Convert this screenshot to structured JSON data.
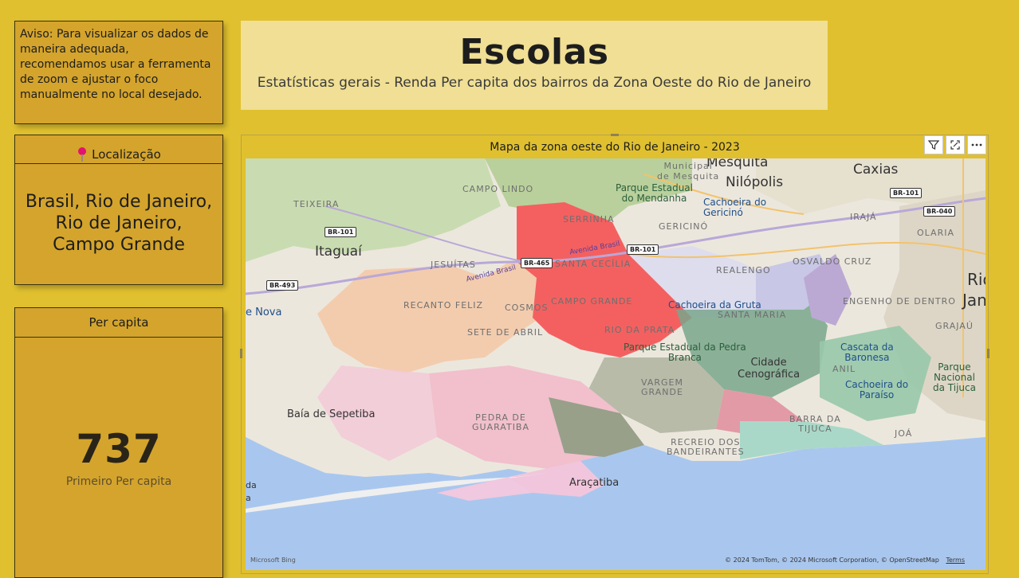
{
  "warning": {
    "text": "Aviso: Para visualizar os dados de maneira adequada, recomendamos usar a ferramenta de zoom e ajustar o foco manualmente no local desejado."
  },
  "location": {
    "header": "Localização",
    "value_lines": [
      "Brasil, Rio de Janeiro,",
      "Rio de Janeiro,",
      "Campo Grande"
    ]
  },
  "per_capita": {
    "header": "Per capita",
    "value": "737",
    "label": "Primeiro Per capita"
  },
  "title": {
    "main": "Escolas",
    "subtitle": "Estatísticas gerais - Renda Per capita dos bairros da Zona Oeste do Rio de Janeiro"
  },
  "map": {
    "title": "Mapa da zona oeste do Rio de Janeiro - 2023",
    "bing_logo": "Microsoft Bing",
    "attribution": "© 2024 TomTom, © 2024 Microsoft Corporation, © OpenStreetMap",
    "terms": "Terms",
    "labels": {
      "caxias": "Caxias",
      "mesquita": "Mesquita",
      "nilopolis": "Nilópolis",
      "mun_mesquita": "Municipal\nde Mesquita",
      "mendanha": "Parque Estadual\ndo Mendanha",
      "gericino": "Cachoeira do\nGericinó",
      "campo_lindo": "CAMPO LINDO",
      "teixeira": "TEIXEIRA",
      "serrinha": "SERRINHA",
      "gericino_b": "GERICINÓ",
      "iraja": "IRAJÁ",
      "olaria": "OLARIA",
      "itaguai": "Itaguaí",
      "jesuitas": "JESUÍTAS",
      "santa_cecilia": "SANTA CECÍLIA",
      "realengo": "REALENGO",
      "osvaldo_cruz": "OSVALDO CRUZ",
      "rio": "Rio",
      "janeiro": "Jan",
      "recanto": "RECANTO FELIZ",
      "cosmos": "COSMOS",
      "campo_grande": "CAMPO GRANDE",
      "gruta": "Cachoeira da Gruta",
      "santa_maria": "SANTA MARIA",
      "engenho": "ENGENHO DE DENTRO",
      "nova": "e Nova",
      "sete_abril": "SETE DE ABRIL",
      "rio_prata": "RIO DA PRATA",
      "pedra_branca": "Parque Estadual da Pedra\nBranca",
      "grajau": "GRAJAÚ",
      "baronesa": "Cascata da\nBaronesa",
      "cidade": "Cidade\nCenográfica",
      "anil": "ANIL",
      "tijuca": "Parque\nNacional\nda Tijuca",
      "vargem": "VARGEM\nGRANDE",
      "paraiso": "Cachoeira do\nParaíso",
      "sepetiba": "Baía de Sepetiba",
      "guaratiba": "PEDRA DE\nGUARATIBA",
      "barra": "BARRA DA\nTIJUCA",
      "joa": "JOÁ",
      "recreio": "RECREIO DOS\nBANDEIRANTES",
      "aracatiba": "Araçatiba",
      "av_brasil_1": "Avenida Brasil",
      "av_brasil_2": "Avenida Brasil",
      "da": "da",
      "a": "a"
    },
    "shields": {
      "br101_a": "BR-101",
      "br101_b": "BR-101",
      "br101_c": "BR-101",
      "br040": "BR-040",
      "br465": "BR-465",
      "br493": "BR-493"
    }
  },
  "colors": {
    "background": "#e0c02f",
    "card": "#d4a42c",
    "title_box": "#f0df94",
    "highlight_region": "#f46060",
    "water": "#a9c7ee"
  }
}
